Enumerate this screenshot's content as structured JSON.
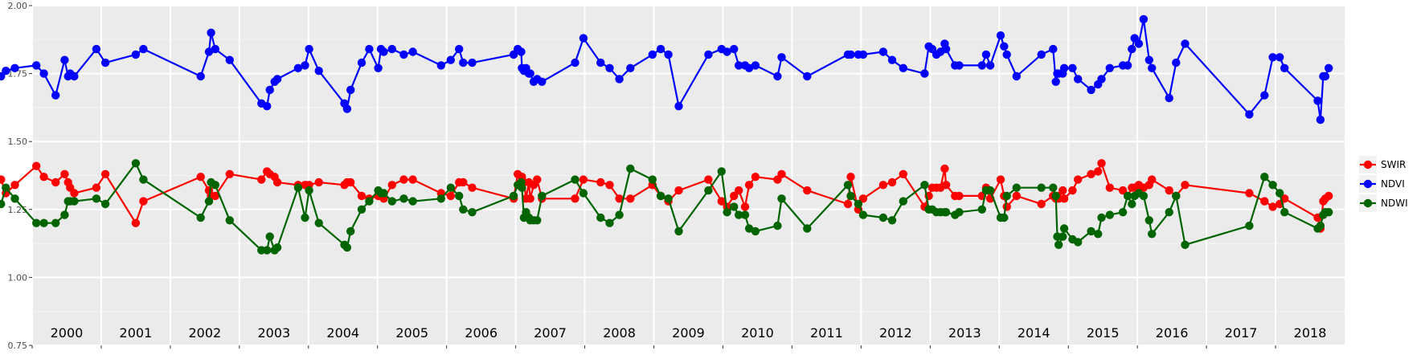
{
  "chart_data": {
    "type": "line",
    "xlabel": "",
    "ylabel": "",
    "xlim": [
      2000.0,
      2019.0
    ],
    "ylim": [
      0.75,
      2.0
    ],
    "y_ticks": [
      0.75,
      1.0,
      1.25,
      1.5,
      1.75,
      2.0
    ],
    "y_tick_labels": [
      "0.75",
      "1.00",
      "1.25",
      "1.50",
      "1.75",
      "2.00"
    ],
    "year_ticks": [
      2000,
      2001,
      2002,
      2003,
      2004,
      2005,
      2006,
      2007,
      2008,
      2009,
      2010,
      2011,
      2012,
      2013,
      2014,
      2015,
      2016,
      2017,
      2018
    ],
    "year_labels": [
      "2000",
      "2001",
      "2002",
      "2003",
      "2004",
      "2005",
      "2006",
      "2007",
      "2008",
      "2009",
      "2010",
      "2011",
      "2012",
      "2013",
      "2014",
      "2015",
      "2016",
      "2017",
      "2018"
    ],
    "grid": true,
    "legend_position": "right",
    "series": [
      {
        "name": "SWIR",
        "color": "#ff0000",
        "x": [
          1999.55,
          1999.62,
          1999.75,
          2000.06,
          2000.17,
          2000.34,
          2000.47,
          2000.52,
          2000.55,
          2000.61,
          2000.93,
          2001.06,
          2001.5,
          2001.61,
          2002.44,
          2002.56,
          2002.59,
          2002.65,
          2002.86,
          2003.32,
          2003.4,
          2003.44,
          2003.51,
          2003.55,
          2003.85,
          2003.95,
          2004.01,
          2004.15,
          2004.52,
          2004.56,
          2004.61,
          2004.77,
          2004.88,
          2005.01,
          2005.05,
          2005.09,
          2005.21,
          2005.38,
          2005.51,
          2005.92,
          2006.06,
          2006.18,
          2006.24,
          2006.37,
          2006.97,
          2007.03,
          2007.08,
          2007.09,
          2007.12,
          2007.15,
          2007.19,
          2007.21,
          2007.26,
          2007.31,
          2007.38,
          2007.86,
          2007.98,
          2008.23,
          2008.36,
          2008.5,
          2008.66,
          2008.98,
          2009.1,
          2009.21,
          2009.36,
          2009.79,
          2009.98,
          2010.06,
          2010.16,
          2010.23,
          2010.32,
          2010.38,
          2010.47,
          2010.79,
          2010.85,
          2011.22,
          2011.81,
          2011.85,
          2011.96,
          2012.03,
          2012.32,
          2012.45,
          2012.61,
          2012.92,
          2012.98,
          2013.03,
          2013.09,
          2013.15,
          2013.21,
          2013.23,
          2013.36,
          2013.42,
          2013.75,
          2013.81,
          2013.87,
          2014.02,
          2014.07,
          2014.11,
          2014.25,
          2014.61,
          2014.78,
          2014.82,
          2014.84,
          2014.86,
          2014.92,
          2014.94,
          2015.06,
          2015.14,
          2015.33,
          2015.43,
          2015.48,
          2015.6,
          2015.79,
          2015.86,
          2015.92,
          2015.96,
          2016.02,
          2016.09,
          2016.17,
          2016.21,
          2016.46,
          2016.56,
          2016.69,
          2017.62,
          2017.84,
          2017.96,
          2018.06,
          2018.13,
          2018.61,
          2018.65,
          2018.69,
          2018.72,
          2018.77
        ],
        "values": [
          1.36,
          1.31,
          1.34,
          1.41,
          1.37,
          1.35,
          1.38,
          1.35,
          1.33,
          1.31,
          1.33,
          1.38,
          1.2,
          1.28,
          1.37,
          1.32,
          1.3,
          1.3,
          1.38,
          1.36,
          1.39,
          1.38,
          1.37,
          1.35,
          1.34,
          1.34,
          1.34,
          1.35,
          1.34,
          1.35,
          1.35,
          1.3,
          1.29,
          1.3,
          1.3,
          1.29,
          1.34,
          1.36,
          1.36,
          1.31,
          1.3,
          1.35,
          1.35,
          1.33,
          1.29,
          1.38,
          1.35,
          1.37,
          1.35,
          1.29,
          1.35,
          1.29,
          1.34,
          1.36,
          1.29,
          1.29,
          1.36,
          1.35,
          1.34,
          1.29,
          1.29,
          1.34,
          1.3,
          1.28,
          1.32,
          1.36,
          1.28,
          1.26,
          1.3,
          1.32,
          1.26,
          1.34,
          1.37,
          1.36,
          1.38,
          1.32,
          1.27,
          1.37,
          1.25,
          1.29,
          1.34,
          1.35,
          1.38,
          1.26,
          1.3,
          1.33,
          1.33,
          1.33,
          1.4,
          1.34,
          1.3,
          1.3,
          1.3,
          1.33,
          1.29,
          1.36,
          1.3,
          1.26,
          1.3,
          1.27,
          1.3,
          1.29,
          1.3,
          1.29,
          1.32,
          1.29,
          1.32,
          1.36,
          1.38,
          1.39,
          1.42,
          1.33,
          1.32,
          1.3,
          1.33,
          1.33,
          1.34,
          1.33,
          1.34,
          1.36,
          1.32,
          1.3,
          1.34,
          1.31,
          1.28,
          1.26,
          1.27,
          1.29,
          1.22,
          1.18,
          1.28,
          1.29,
          1.3
        ]
      },
      {
        "name": "NDVI",
        "color": "#0000ff",
        "x": [
          1999.55,
          1999.62,
          1999.75,
          2000.06,
          2000.17,
          2000.34,
          2000.47,
          2000.52,
          2000.55,
          2000.61,
          2000.93,
          2001.06,
          2001.5,
          2001.61,
          2002.44,
          2002.56,
          2002.59,
          2002.65,
          2002.86,
          2003.32,
          2003.4,
          2003.44,
          2003.51,
          2003.55,
          2003.85,
          2003.95,
          2004.01,
          2004.15,
          2004.52,
          2004.56,
          2004.61,
          2004.77,
          2004.88,
          2005.01,
          2005.05,
          2005.09,
          2005.21,
          2005.38,
          2005.51,
          2005.92,
          2006.06,
          2006.18,
          2006.24,
          2006.37,
          2006.97,
          2007.03,
          2007.08,
          2007.09,
          2007.12,
          2007.15,
          2007.19,
          2007.21,
          2007.26,
          2007.31,
          2007.38,
          2007.86,
          2007.98,
          2008.23,
          2008.36,
          2008.5,
          2008.66,
          2008.98,
          2009.1,
          2009.21,
          2009.36,
          2009.79,
          2009.98,
          2010.06,
          2010.16,
          2010.23,
          2010.32,
          2010.38,
          2010.47,
          2010.79,
          2010.85,
          2011.22,
          2011.81,
          2011.85,
          2011.96,
          2012.03,
          2012.32,
          2012.45,
          2012.61,
          2012.92,
          2012.98,
          2013.03,
          2013.09,
          2013.15,
          2013.21,
          2013.23,
          2013.36,
          2013.42,
          2013.75,
          2013.81,
          2013.87,
          2014.02,
          2014.07,
          2014.11,
          2014.25,
          2014.61,
          2014.78,
          2014.82,
          2014.84,
          2014.86,
          2014.92,
          2014.94,
          2015.06,
          2015.14,
          2015.33,
          2015.43,
          2015.48,
          2015.6,
          2015.79,
          2015.86,
          2015.92,
          2015.96,
          2016.02,
          2016.09,
          2016.17,
          2016.21,
          2016.46,
          2016.56,
          2016.69,
          2017.62,
          2017.84,
          2017.96,
          2018.06,
          2018.13,
          2018.61,
          2018.65,
          2018.69,
          2018.72,
          2018.77
        ],
        "values": [
          1.74,
          1.76,
          1.77,
          1.78,
          1.75,
          1.67,
          1.8,
          1.74,
          1.75,
          1.74,
          1.84,
          1.79,
          1.82,
          1.84,
          1.74,
          1.83,
          1.9,
          1.84,
          1.8,
          1.64,
          1.63,
          1.69,
          1.72,
          1.73,
          1.77,
          1.78,
          1.84,
          1.76,
          1.64,
          1.62,
          1.69,
          1.79,
          1.84,
          1.77,
          1.84,
          1.83,
          1.84,
          1.82,
          1.83,
          1.78,
          1.8,
          1.84,
          1.79,
          1.79,
          1.82,
          1.84,
          1.83,
          1.77,
          1.76,
          1.77,
          1.75,
          1.75,
          1.72,
          1.73,
          1.72,
          1.79,
          1.88,
          1.79,
          1.77,
          1.73,
          1.77,
          1.82,
          1.84,
          1.82,
          1.63,
          1.82,
          1.84,
          1.83,
          1.84,
          1.78,
          1.78,
          1.77,
          1.78,
          1.74,
          1.81,
          1.74,
          1.82,
          1.82,
          1.82,
          1.82,
          1.83,
          1.8,
          1.77,
          1.75,
          1.85,
          1.84,
          1.82,
          1.83,
          1.86,
          1.84,
          1.78,
          1.78,
          1.78,
          1.82,
          1.78,
          1.89,
          1.85,
          1.82,
          1.74,
          1.82,
          1.84,
          1.72,
          1.75,
          1.75,
          1.75,
          1.77,
          1.77,
          1.73,
          1.69,
          1.71,
          1.73,
          1.77,
          1.78,
          1.78,
          1.84,
          1.88,
          1.86,
          1.95,
          1.8,
          1.77,
          1.66,
          1.79,
          1.86,
          1.6,
          1.67,
          1.81,
          1.81,
          1.77,
          1.65,
          1.58,
          1.74,
          1.74,
          1.77
        ]
      },
      {
        "name": "NDWI",
        "color": "#006400",
        "x": [
          1999.55,
          1999.62,
          1999.75,
          2000.06,
          2000.17,
          2000.34,
          2000.47,
          2000.52,
          2000.55,
          2000.61,
          2000.93,
          2001.06,
          2001.5,
          2001.61,
          2002.44,
          2002.56,
          2002.59,
          2002.65,
          2002.86,
          2003.32,
          2003.4,
          2003.44,
          2003.51,
          2003.55,
          2003.85,
          2003.95,
          2004.01,
          2004.15,
          2004.52,
          2004.56,
          2004.61,
          2004.77,
          2004.88,
          2005.01,
          2005.05,
          2005.09,
          2005.21,
          2005.38,
          2005.51,
          2005.92,
          2006.06,
          2006.18,
          2006.24,
          2006.37,
          2006.97,
          2007.03,
          2007.08,
          2007.09,
          2007.12,
          2007.15,
          2007.19,
          2007.21,
          2007.26,
          2007.31,
          2007.38,
          2007.86,
          2007.98,
          2008.23,
          2008.36,
          2008.5,
          2008.66,
          2008.98,
          2009.1,
          2009.21,
          2009.36,
          2009.79,
          2009.98,
          2010.06,
          2010.16,
          2010.23,
          2010.32,
          2010.38,
          2010.47,
          2010.79,
          2010.85,
          2011.22,
          2011.81,
          2011.85,
          2011.96,
          2012.03,
          2012.32,
          2012.45,
          2012.61,
          2012.92,
          2012.98,
          2013.03,
          2013.09,
          2013.15,
          2013.21,
          2013.23,
          2013.36,
          2013.42,
          2013.75,
          2013.81,
          2013.87,
          2014.02,
          2014.07,
          2014.11,
          2014.25,
          2014.61,
          2014.78,
          2014.82,
          2014.84,
          2014.86,
          2014.92,
          2014.94,
          2015.06,
          2015.14,
          2015.33,
          2015.43,
          2015.48,
          2015.6,
          2015.79,
          2015.86,
          2015.92,
          2015.96,
          2016.02,
          2016.09,
          2016.17,
          2016.21,
          2016.46,
          2016.56,
          2016.69,
          2017.62,
          2017.84,
          2017.96,
          2018.06,
          2018.13,
          2018.61,
          2018.65,
          2018.69,
          2018.72,
          2018.77
        ],
        "values": [
          1.27,
          1.33,
          1.29,
          1.2,
          1.2,
          1.2,
          1.23,
          1.28,
          1.28,
          1.28,
          1.29,
          1.27,
          1.42,
          1.36,
          1.22,
          1.28,
          1.35,
          1.34,
          1.21,
          1.1,
          1.1,
          1.15,
          1.1,
          1.11,
          1.33,
          1.22,
          1.32,
          1.2,
          1.12,
          1.11,
          1.17,
          1.25,
          1.28,
          1.32,
          1.31,
          1.31,
          1.28,
          1.29,
          1.28,
          1.29,
          1.33,
          1.3,
          1.25,
          1.24,
          1.3,
          1.34,
          1.35,
          1.33,
          1.22,
          1.24,
          1.22,
          1.21,
          1.21,
          1.21,
          1.3,
          1.36,
          1.31,
          1.22,
          1.2,
          1.23,
          1.4,
          1.36,
          1.3,
          1.29,
          1.17,
          1.32,
          1.39,
          1.24,
          1.26,
          1.23,
          1.23,
          1.18,
          1.17,
          1.19,
          1.29,
          1.18,
          1.34,
          1.3,
          1.27,
          1.23,
          1.22,
          1.21,
          1.28,
          1.34,
          1.25,
          1.25,
          1.24,
          1.24,
          1.24,
          1.24,
          1.23,
          1.24,
          1.25,
          1.32,
          1.32,
          1.22,
          1.22,
          1.3,
          1.33,
          1.33,
          1.33,
          1.3,
          1.15,
          1.12,
          1.15,
          1.18,
          1.14,
          1.13,
          1.17,
          1.16,
          1.22,
          1.23,
          1.24,
          1.3,
          1.27,
          1.3,
          1.31,
          1.3,
          1.21,
          1.16,
          1.24,
          1.3,
          1.12,
          1.19,
          1.37,
          1.34,
          1.31,
          1.24,
          1.18,
          1.19,
          1.23,
          1.24,
          1.24
        ]
      }
    ]
  }
}
